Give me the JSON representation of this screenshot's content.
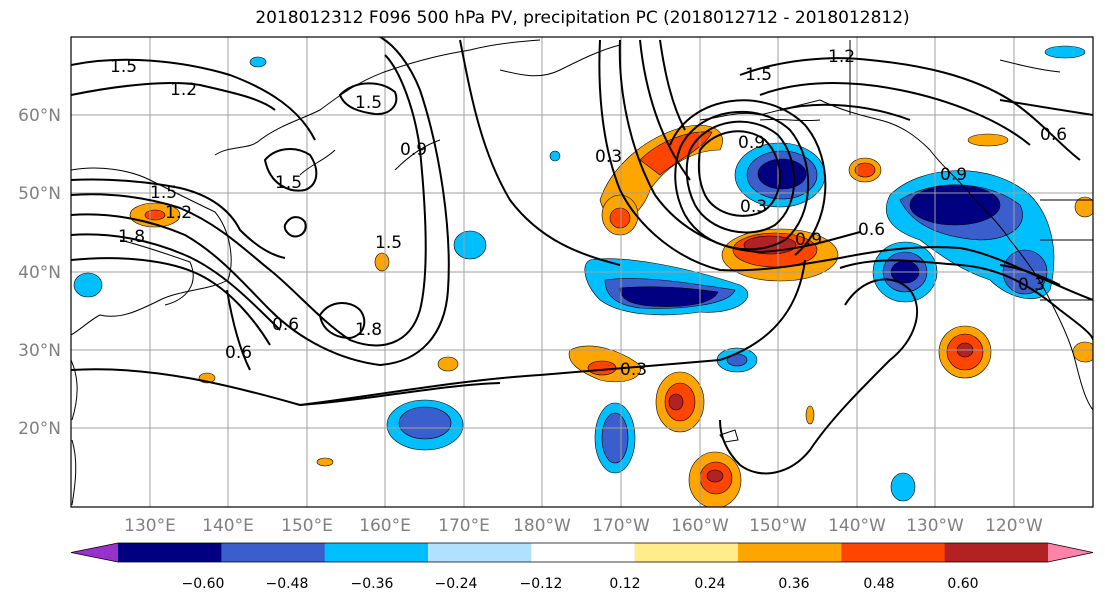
{
  "title": "2018012312 F096 500 hPa PV, precipitation PC (2018012712 - 2018012812)",
  "map": {
    "lon_labels": [
      "130°E",
      "140°E",
      "150°E",
      "160°E",
      "170°E",
      "180°W",
      "170°W",
      "160°W",
      "150°W",
      "140°W",
      "130°W",
      "120°W"
    ],
    "lat_labels": [
      "60°N",
      "50°N",
      "40°N",
      "30°N",
      "20°N"
    ],
    "contour_labels": [
      "1.5",
      "1.2",
      "1.5",
      "1.5",
      "0.9",
      "1.5",
      "1.2",
      "1.8",
      "1.5",
      "0.6",
      "0.6",
      "1.8",
      "0.3",
      "0.3",
      "1.5",
      "1.2",
      "0.6",
      "0.9",
      "0.9",
      "0.6",
      "0.3",
      "0.9",
      "0.3"
    ],
    "colorbar": {
      "ticks": [
        "−0.60",
        "−0.48",
        "−0.36",
        "−0.24",
        "−0.12",
        "0.12",
        "0.24",
        "0.36",
        "0.48",
        "0.60"
      ],
      "colors": [
        "#9932cc",
        "#000080",
        "#3a5fcd",
        "#00bfff",
        "#b0e2ff",
        "#ffffff",
        "#ffec8b",
        "#ffa500",
        "#ff4500",
        "#b22222",
        "#ff82ab"
      ]
    }
  }
}
